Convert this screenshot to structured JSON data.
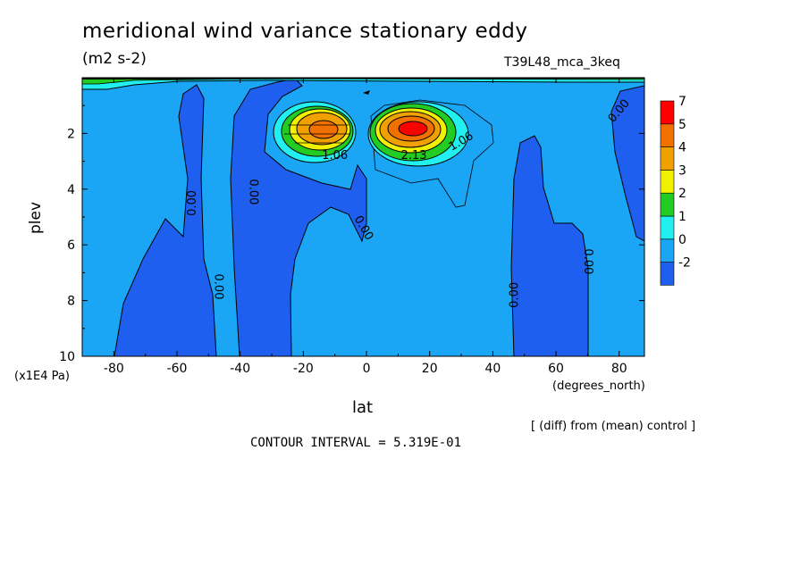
{
  "title": "meridional wind variance  stationary eddy",
  "units": "(m2 s-2)",
  "run_label": "T39L48_mca_3keq",
  "diff_note": "[ (diff) from (mean) control ]",
  "contour_interval_text": "CONTOUR INTERVAL = 5.319E-01",
  "colors": {
    "minus2": "#1f5ff0",
    "zero": "#1aa5f5",
    "one": "#22f0f0",
    "two": "#22cc22",
    "three": "#f0f000",
    "four": "#f0a000",
    "five": "#f07000",
    "seven": "#ff0000"
  },
  "chart_data": {
    "type": "contour",
    "xlabel": "lat",
    "x_unit": "(degrees_north)",
    "ylabel": "plev",
    "y_unit": "(x1E4 Pa)",
    "xlim": [
      -90,
      88
    ],
    "ylim": [
      10,
      0
    ],
    "x_ticks": [
      -80,
      -60,
      -40,
      -20,
      0,
      20,
      40,
      60,
      80
    ],
    "x_tick_labels": [
      "-80",
      "-60",
      "-40",
      "-20",
      "0",
      "20",
      "40",
      "60",
      "80"
    ],
    "y_ticks": [
      2,
      4,
      6,
      8,
      10
    ],
    "y_tick_labels": [
      "2",
      "4",
      "6",
      "8",
      "10"
    ],
    "colorbar": {
      "levels": [
        "-2",
        "0",
        "1",
        "2",
        "3",
        "4",
        "5",
        "7"
      ],
      "colors": [
        "#1f5ff0",
        "#1aa5f5",
        "#22f0f0",
        "#22cc22",
        "#f0f000",
        "#f0a000",
        "#f07000",
        "#ff0000"
      ]
    },
    "contour_labels": [
      {
        "text": "0.00",
        "lat": -55,
        "plev": 4.5,
        "rotation": -90
      },
      {
        "text": "0.00",
        "lat": -36,
        "plev": 4.1,
        "rotation": 90
      },
      {
        "text": "0.00",
        "lat": -47,
        "plev": 7.5,
        "rotation": 90
      },
      {
        "text": "0.00",
        "lat": -1,
        "plev": 5.4,
        "rotation": 60
      },
      {
        "text": "0.00",
        "lat": 47,
        "plev": 7.8,
        "rotation": -90
      },
      {
        "text": "0.00",
        "lat": 70,
        "plev": 6.6,
        "rotation": 90
      },
      {
        "text": "0.00",
        "lat": 80,
        "plev": 1.2,
        "rotation": -50
      },
      {
        "text": "1.06",
        "lat": -10,
        "plev": 2.8,
        "rotation": 0
      },
      {
        "text": "2.13",
        "lat": 15,
        "plev": 2.8,
        "rotation": 0
      },
      {
        "text": "1.06",
        "lat": 30,
        "plev": 2.3,
        "rotation": -30
      }
    ],
    "maxima": [
      {
        "lat": -12,
        "plev": 2.0,
        "approx_value": 5
      },
      {
        "lat": 14,
        "plev": 2.0,
        "approx_value": 7
      }
    ],
    "grid": false
  }
}
